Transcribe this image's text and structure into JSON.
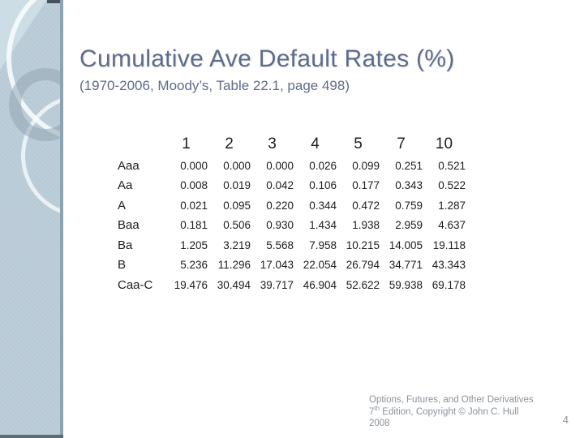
{
  "slide": {
    "title": "Cumulative Ave Default Rates (%)",
    "subtitle": "(1970-2006, Moody’s, Table 22.1, page 498)",
    "footer": {
      "line1": "Options, Futures, and Other Derivatives",
      "line2_base": "7",
      "line2_sup": "th",
      "line2_rest": " Edition, Copyright © John C. Hull",
      "line3": "2008"
    },
    "page_number": "4"
  },
  "chart_data": {
    "type": "table",
    "title": "Cumulative Ave Default Rates (%)",
    "subtitle": "(1970-2006, Moody’s, Table 22.1, page 498)",
    "columns": [
      "1",
      "2",
      "3",
      "4",
      "5",
      "7",
      "10"
    ],
    "rows": [
      {
        "label": "Aaa",
        "values": [
          "0.000",
          "0.000",
          "0.000",
          "0.026",
          "0.099",
          "0.251",
          "0.521"
        ]
      },
      {
        "label": "Aa",
        "values": [
          "0.008",
          "0.019",
          "0.042",
          "0.106",
          "0.177",
          "0.343",
          "0.522"
        ]
      },
      {
        "label": "A",
        "values": [
          "0.021",
          "0.095",
          "0.220",
          "0.344",
          "0.472",
          "0.759",
          "1.287"
        ]
      },
      {
        "label": "Baa",
        "values": [
          "0.181",
          "0.506",
          "0.930",
          "1.434",
          "1.938",
          "2.959",
          "4.637"
        ]
      },
      {
        "label": "Ba",
        "values": [
          "1.205",
          "3.219",
          "5.568",
          "7.958",
          "10.215",
          "14.005",
          "19.118"
        ]
      },
      {
        "label": "B",
        "values": [
          "5.236",
          "11.296",
          "17.043",
          "22.054",
          "26.794",
          "34.771",
          "43.343"
        ]
      },
      {
        "label": "Caa-C",
        "values": [
          "19.476",
          "30.494",
          "39.717",
          "46.904",
          "52.622",
          "59.938",
          "69.178"
        ]
      }
    ]
  },
  "colors": {
    "title_text": "#5e6c8b",
    "table_text": "#1c1c1c",
    "footer_text": "#8a929b",
    "band_base": "#b8cad6",
    "band_corner_highlight": "#cddde6",
    "band_right_edge": "#8ea3b0",
    "band_bottom_edge": "#5f6b73"
  }
}
